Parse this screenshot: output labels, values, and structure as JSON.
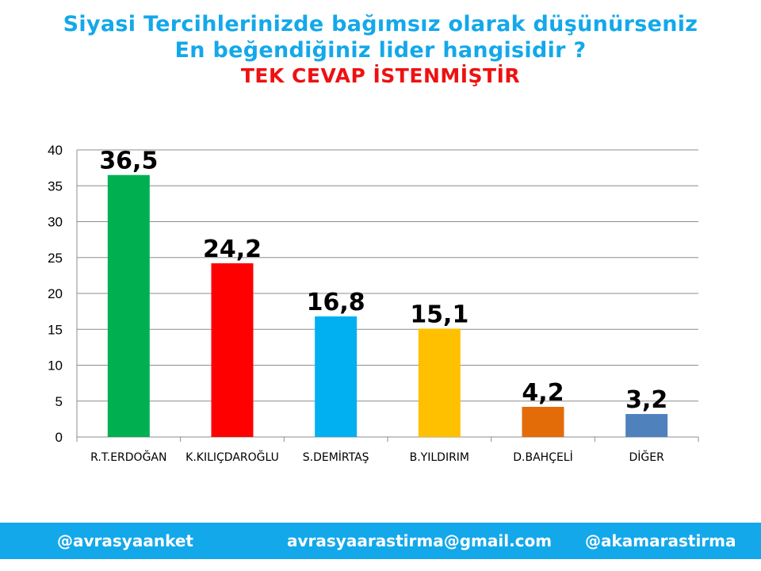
{
  "header": {
    "line1": "Siyasi Tercihlerinizde bağımsız olarak düşünürseniz",
    "line2": "En beğendiğiniz lider hangisidir ?",
    "line3": "TEK CEVAP İSTENMİŞTİR"
  },
  "chart_data": {
    "type": "bar",
    "categories": [
      "R.T.ERDOĞAN",
      "K.KILIÇDAROĞLU",
      "S.DEMİRTAŞ",
      "B.YILDIRIM",
      "D.BAHÇELİ",
      "DİĞER"
    ],
    "values": [
      36.5,
      24.2,
      16.8,
      15.1,
      4.2,
      3.2
    ],
    "value_labels": [
      "36,5",
      "24,2",
      "16,8",
      "15,1",
      "4,2",
      "3,2"
    ],
    "colors": [
      "#00b050",
      "#ff0000",
      "#00b0f0",
      "#ffc000",
      "#e36c09",
      "#4f81bd"
    ],
    "ylim": [
      0,
      40
    ],
    "yticks": [
      0,
      5,
      10,
      15,
      20,
      25,
      30,
      35,
      40
    ],
    "grid": true,
    "title": "",
    "xlabel": "",
    "ylabel": ""
  },
  "footer": {
    "left": "@avrasyaanket",
    "center": "avrasyaarastirma@gmail.com",
    "right": "@akamarastirma"
  }
}
